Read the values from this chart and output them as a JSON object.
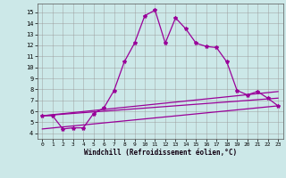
{
  "xlabel": "Windchill (Refroidissement éolien,°C)",
  "background_color": "#cce8e8",
  "line_color": "#990099",
  "xlim": [
    -0.5,
    23.5
  ],
  "ylim": [
    3.5,
    15.8
  ],
  "xticks": [
    0,
    1,
    2,
    3,
    4,
    5,
    6,
    7,
    8,
    9,
    10,
    11,
    12,
    13,
    14,
    15,
    16,
    17,
    18,
    19,
    20,
    21,
    22,
    23
  ],
  "yticks": [
    4,
    5,
    6,
    7,
    8,
    9,
    10,
    11,
    12,
    13,
    14,
    15
  ],
  "curve1_x": [
    0,
    1,
    2,
    3,
    4,
    5,
    6,
    7,
    8,
    9,
    10,
    11,
    12,
    13,
    14,
    15,
    16,
    17,
    18,
    19,
    20,
    21,
    22,
    23
  ],
  "curve1_y": [
    5.6,
    5.6,
    4.4,
    4.5,
    4.5,
    5.8,
    6.3,
    7.9,
    10.5,
    12.2,
    14.7,
    15.2,
    12.2,
    14.5,
    13.5,
    12.2,
    11.9,
    11.8,
    10.5,
    7.9,
    7.5,
    7.8,
    7.2,
    6.5
  ],
  "curve2_x": [
    0,
    23
  ],
  "curve2_y": [
    4.4,
    6.5
  ],
  "curve3_x": [
    0,
    23
  ],
  "curve3_y": [
    5.6,
    7.8
  ],
  "curve4_x": [
    0,
    23
  ],
  "curve4_y": [
    5.6,
    7.2
  ]
}
